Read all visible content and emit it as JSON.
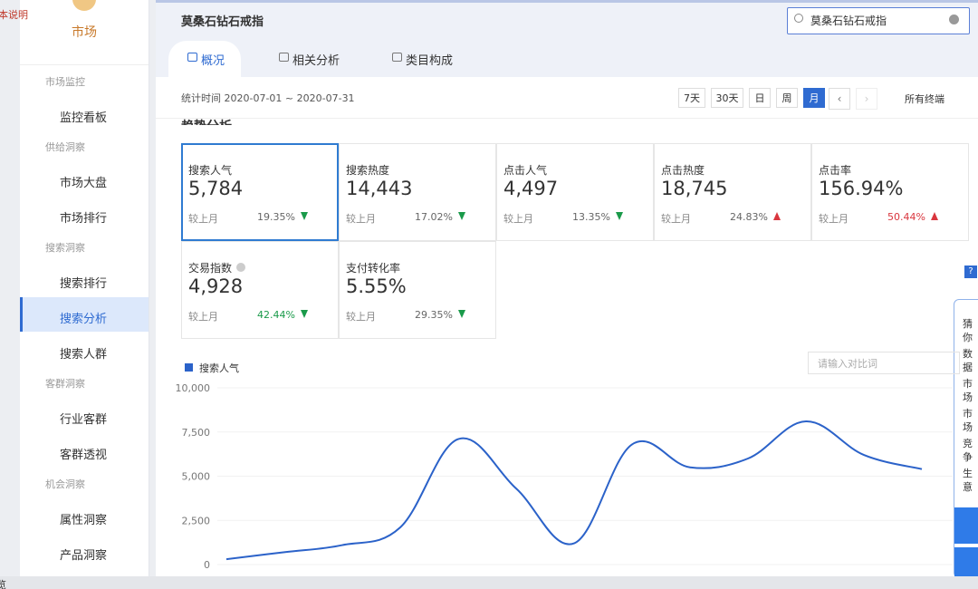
{
  "corner_note": "本说明",
  "bottom_note": "览",
  "sidebar": {
    "title": "市场",
    "sections": [
      {
        "heading": "市场监控",
        "items": [
          {
            "label": "监控看板"
          }
        ]
      },
      {
        "heading": "供给洞察",
        "items": [
          {
            "label": "市场大盘"
          },
          {
            "label": "市场排行"
          }
        ]
      },
      {
        "heading": "搜索洞察",
        "items": [
          {
            "label": "搜索排行"
          },
          {
            "label": "搜索分析",
            "active": true
          },
          {
            "label": "搜索人群"
          }
        ]
      },
      {
        "heading": "客群洞察",
        "items": [
          {
            "label": "行业客群"
          },
          {
            "label": "客群透视"
          }
        ]
      },
      {
        "heading": "机会洞察",
        "items": [
          {
            "label": "属性洞察"
          },
          {
            "label": "产品洞察"
          }
        ]
      }
    ]
  },
  "header": {
    "title": "莫桑石钻石戒指",
    "search": "莫桑石钻石戒指"
  },
  "tabs": [
    {
      "label": "概况",
      "active": true
    },
    {
      "label": "相关分析"
    },
    {
      "label": "类目构成"
    }
  ],
  "date_range": "统计时间 2020-07-01 ~ 2020-07-31",
  "period_buttons": [
    {
      "label": "7天"
    },
    {
      "label": "30天"
    },
    {
      "label": "日"
    },
    {
      "label": "周"
    },
    {
      "label": "月",
      "active": true
    }
  ],
  "terminal": "所有终端",
  "section_title": "趋势分析",
  "metrics": [
    {
      "name": "搜索人气",
      "value": "5,784",
      "compare_label": "较上月",
      "change": "19.35%",
      "direction": "down",
      "selected": true
    },
    {
      "name": "搜索热度",
      "value": "14,443",
      "compare_label": "较上月",
      "change": "17.02%",
      "direction": "down"
    },
    {
      "name": "点击人气",
      "value": "4,497",
      "compare_label": "较上月",
      "change": "13.35%",
      "direction": "down"
    },
    {
      "name": "点击热度",
      "value": "18,745",
      "compare_label": "较上月",
      "change": "24.83%",
      "direction": "up"
    },
    {
      "name": "点击率",
      "value": "156.94%",
      "compare_label": "较上月",
      "change": "50.44%",
      "direction": "up",
      "change_highlight": true
    },
    {
      "name": "交易指数",
      "value": "4,928",
      "compare_label": "较上月",
      "change": "42.44%",
      "direction": "down",
      "info_icon": true,
      "change_highlight": true
    },
    {
      "name": "支付转化率",
      "value": "5.55%",
      "compare_label": "较上月",
      "change": "29.35%",
      "direction": "down"
    }
  ],
  "compare_input": "请输入对比词",
  "side_panel": [
    "猜你",
    "数据开通",
    "市场",
    "市场旧板",
    "竞争",
    "生意成交目？"
  ],
  "chart_data": {
    "type": "line",
    "categories": [
      null,
      null,
      null,
      null,
      null,
      null,
      null,
      null,
      null,
      null,
      null,
      null,
      null
    ],
    "series": [
      {
        "name": "搜索人气",
        "color": "#2b62c9",
        "values": [
          300,
          700,
          1100,
          2100,
          7100,
          4300,
          1200,
          6800,
          5500,
          6000,
          8100,
          6200,
          5400
        ]
      }
    ],
    "ylim": [
      0,
      10000
    ],
    "yticks": [
      0,
      {
        "value": 2500,
        "label": "2,500"
      },
      {
        "value": 5000,
        "label": "5,000"
      },
      {
        "value": 7500,
        "label": "7,500"
      },
      {
        "value": 10000,
        "label": "10,000"
      }
    ],
    "grid": true
  }
}
